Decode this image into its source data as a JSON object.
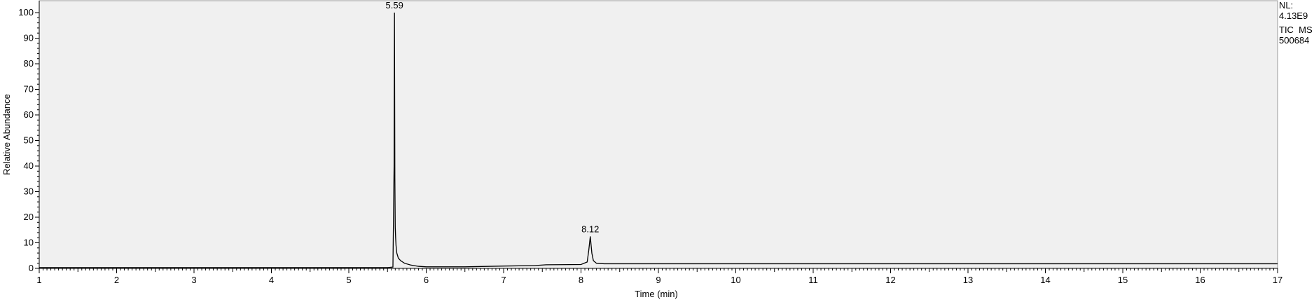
{
  "chart_data": {
    "type": "line",
    "title": "",
    "xlabel": "Time (min)",
    "ylabel": "Relative Abundance",
    "xlim": [
      1,
      17
    ],
    "ylim": [
      0,
      100
    ],
    "x_ticks": [
      1,
      2,
      3,
      4,
      5,
      6,
      7,
      8,
      9,
      10,
      11,
      12,
      13,
      14,
      15,
      16,
      17
    ],
    "y_ticks": [
      0,
      10,
      20,
      30,
      40,
      50,
      60,
      70,
      80,
      90,
      100
    ],
    "grid": false,
    "background": "#f0f0f0",
    "line_color": "#000000",
    "series": [
      {
        "x": [
          1.0,
          5.5,
          5.57,
          5.585,
          5.59,
          5.595,
          5.6,
          5.605,
          5.61,
          5.62,
          5.64,
          5.67,
          5.72,
          5.8,
          5.9,
          6.0,
          6.5,
          7.0,
          7.4,
          7.5,
          7.55,
          8.0,
          8.08,
          8.1,
          8.12,
          8.14,
          8.16,
          8.2,
          8.3,
          8.4,
          8.5,
          9.0,
          17.0
        ],
        "y": [
          0.3,
          0.3,
          0.5,
          40,
          100,
          35,
          16,
          12,
          9,
          6,
          4,
          3,
          2,
          1.3,
          0.8,
          0.6,
          0.6,
          0.9,
          1.1,
          1.3,
          1.4,
          1.5,
          2.5,
          7,
          12.5,
          6,
          3,
          2,
          1.8,
          1.8,
          1.8,
          1.8,
          1.8
        ]
      }
    ],
    "annotations": [
      {
        "x": 5.59,
        "y": 100,
        "text": "5.59"
      },
      {
        "x": 8.12,
        "y": 12.5,
        "text": "8.12"
      }
    ]
  },
  "info": {
    "nl_label": "NL:",
    "nl_value": "4.13E9",
    "trace": "TIC  MS",
    "sample": "500684"
  }
}
